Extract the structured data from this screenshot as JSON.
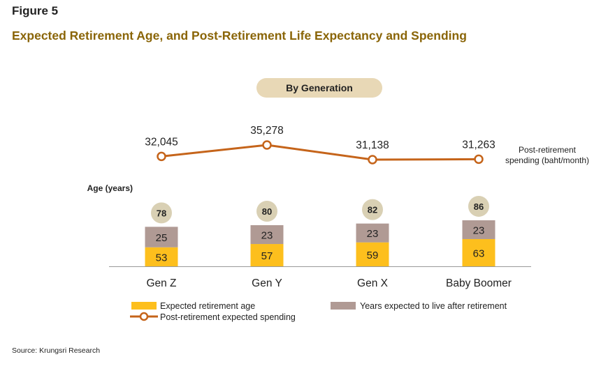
{
  "figure_label": "Figure 5",
  "title": "Expected Retirement Age, and Post-Retirement Life Expectancy and Spending",
  "subtitle_pill": "By Generation",
  "age_axis_label": "Age (years)",
  "spending_series_label_line1": "Post-retirement",
  "spending_series_label_line2": "spending (baht/month)",
  "source": "Source: Krungsri Research",
  "colors": {
    "retirement_age": "#fdbf1d",
    "years_after": "#b09a94",
    "spending_line": "#c5641a",
    "age_circle": "#d9d0b4",
    "title": "#8a6508",
    "pill": "#e8d8b6"
  },
  "chart_data": {
    "type": "bar",
    "stacked": true,
    "categories": [
      "Gen Z",
      "Gen Y",
      "Gen X",
      "Baby Boomer"
    ],
    "series": [
      {
        "name": "Expected retirement age",
        "values": [
          53,
          57,
          59,
          63
        ]
      },
      {
        "name": "Years expected to live after retirement",
        "values": [
          25,
          23,
          23,
          23
        ]
      }
    ],
    "totals": [
      78,
      80,
      82,
      86
    ],
    "line_series": {
      "name": "Post-retirement expected spending",
      "values": [
        32045,
        35278,
        31138,
        31263
      ],
      "labels": [
        "32,045",
        "35,278",
        "31,138",
        "31,263"
      ]
    },
    "legend": [
      {
        "label": "Expected retirement age",
        "kind": "bar",
        "series": 0
      },
      {
        "label": "Years expected to live after retirement",
        "kind": "bar",
        "series": 1
      },
      {
        "label": "Post-retirement expected spending",
        "kind": "line"
      }
    ],
    "legend_position": "bottom",
    "grid": false
  }
}
